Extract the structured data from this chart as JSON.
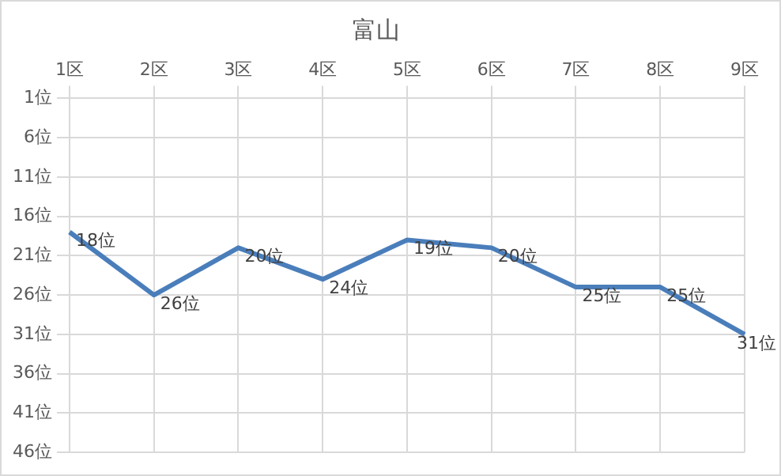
{
  "chart_data": {
    "type": "line",
    "title": "富山",
    "categories": [
      "1区",
      "2区",
      "3区",
      "4区",
      "5区",
      "6区",
      "7区",
      "8区",
      "9区"
    ],
    "series": [
      {
        "color": "#4a7ebb",
        "values": [
          18,
          26,
          20,
          24,
          19,
          20,
          25,
          25,
          31
        ],
        "value_labels": [
          "18位",
          "26位",
          "20位",
          "24位",
          "19位",
          "20位",
          "25位",
          "25位",
          "31位"
        ]
      }
    ],
    "ylim": [
      46,
      1
    ],
    "yticks": [
      {
        "value": 1,
        "label": "1位"
      },
      {
        "value": 6,
        "label": "6位"
      },
      {
        "value": 11,
        "label": "11位"
      },
      {
        "value": 16,
        "label": "16位"
      },
      {
        "value": 21,
        "label": "21位"
      },
      {
        "value": 26,
        "label": "26位"
      },
      {
        "value": 31,
        "label": "31位"
      },
      {
        "value": 36,
        "label": "36位"
      },
      {
        "value": 41,
        "label": "41位"
      },
      {
        "value": 46,
        "label": "46位"
      }
    ],
    "grid": true,
    "legend": false,
    "marker": "none",
    "line_style": "solid"
  }
}
